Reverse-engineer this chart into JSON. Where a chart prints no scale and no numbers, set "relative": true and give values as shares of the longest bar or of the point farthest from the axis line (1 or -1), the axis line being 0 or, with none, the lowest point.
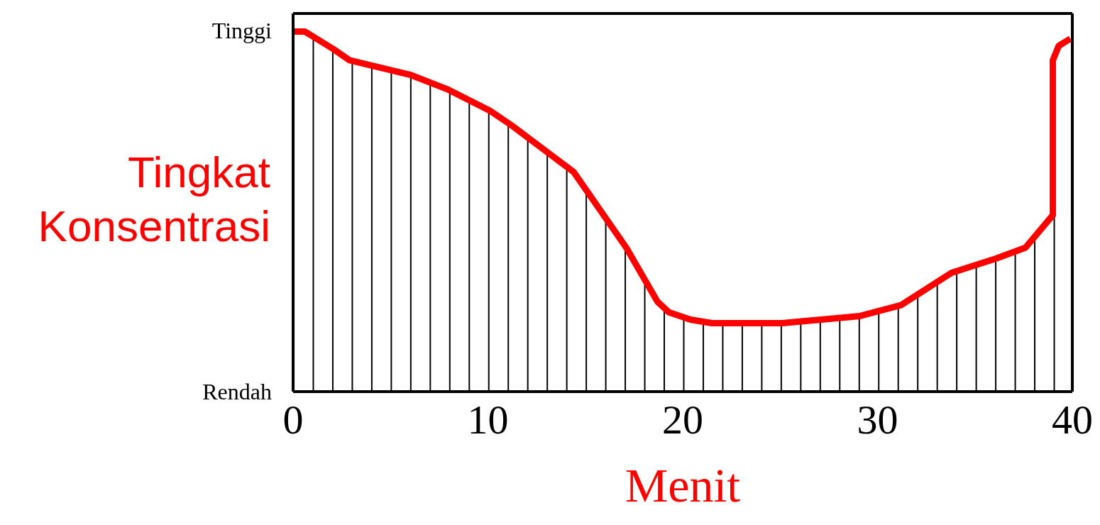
{
  "chart_data": {
    "type": "area",
    "xlabel": "Menit",
    "ylabel": "Tingkat Konsentrasi",
    "xlim": [
      0,
      40
    ],
    "xticks": [
      0,
      10,
      20,
      30,
      40
    ],
    "relative": true,
    "annotations": [
      "Tinggi",
      "Rendah"
    ],
    "marker": "none",
    "line_style": "solid",
    "series": [
      {
        "color": "#ff0000",
        "x": [
          0,
          0.6,
          1.2,
          2.1,
          2.9,
          6.0,
          7.9,
          10.1,
          11.2,
          14.4,
          17.1,
          18.7,
          19.3,
          20.4,
          21.5,
          25.1,
          29.1,
          31.2,
          33.8,
          36.1,
          37.6,
          39.0,
          39.0,
          39.3,
          39.9
        ],
        "values": [
          1,
          1,
          0.98,
          0.95,
          0.92,
          0.88,
          0.84,
          0.78,
          0.74,
          0.61,
          0.4,
          0.25,
          0.22,
          0.2,
          0.19,
          0.19,
          0.21,
          0.24,
          0.33,
          0.37,
          0.4,
          0.49,
          0.92,
          0.96,
          0.98
        ]
      }
    ]
  }
}
